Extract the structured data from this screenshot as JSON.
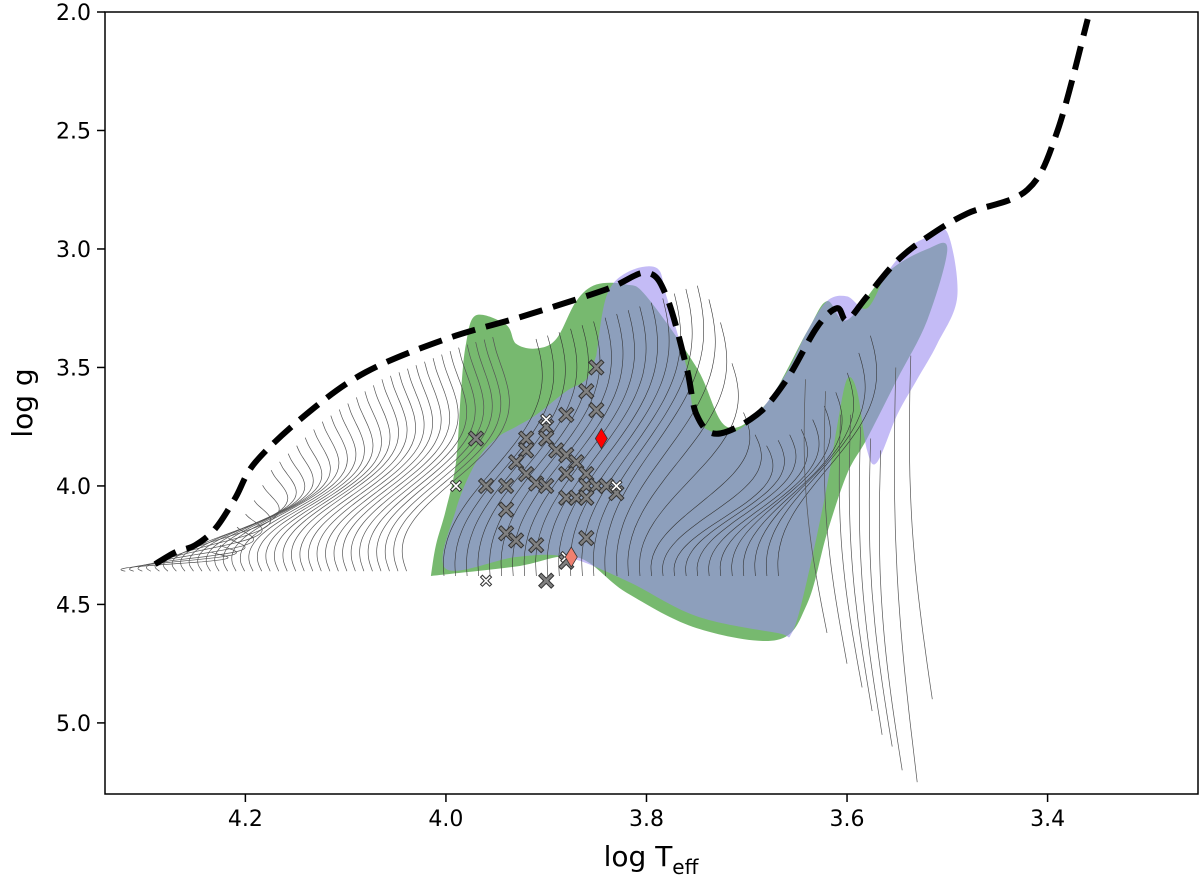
{
  "chart_data": {
    "type": "scatter",
    "title": "",
    "xlabel": "log T",
    "xlabel_sub": "eff",
    "ylabel": "log g",
    "xlim": [
      4.34,
      3.25
    ],
    "ylim": [
      5.3,
      2.0
    ],
    "x_ticks": [
      4.2,
      4.0,
      3.8,
      3.6,
      3.4
    ],
    "x_tick_labels": [
      "4.2",
      "4.0",
      "3.8",
      "3.6",
      "3.4"
    ],
    "y_ticks": [
      2.0,
      2.5,
      3.0,
      3.5,
      4.0,
      4.5,
      5.0
    ],
    "y_tick_labels": [
      "2.0",
      "2.5",
      "3.0",
      "3.5",
      "4.0",
      "4.5",
      "5.0"
    ],
    "grid": false,
    "colors": {
      "green_region": "#5fad56",
      "purple_region": "#9d8df0",
      "overlap_region": "#6c7fa6",
      "envelope": "#000000",
      "stars_gray": "#808080",
      "stars_white": "#ffffff",
      "diamond_red": "#ff0000",
      "diamond_salmon": "#f08070"
    },
    "envelope": [
      [
        4.29,
        4.33
      ],
      [
        4.27,
        4.28
      ],
      [
        4.25,
        4.25
      ],
      [
        4.23,
        4.18
      ],
      [
        4.21,
        4.05
      ],
      [
        4.19,
        3.9
      ],
      [
        4.14,
        3.7
      ],
      [
        4.08,
        3.52
      ],
      [
        4.0,
        3.38
      ],
      [
        3.92,
        3.28
      ],
      [
        3.84,
        3.17
      ],
      [
        3.8,
        3.1
      ],
      [
        3.78,
        3.2
      ],
      [
        3.76,
        3.5
      ],
      [
        3.75,
        3.7
      ],
      [
        3.73,
        3.78
      ],
      [
        3.69,
        3.7
      ],
      [
        3.66,
        3.55
      ],
      [
        3.63,
        3.33
      ],
      [
        3.61,
        3.25
      ],
      [
        3.6,
        3.3
      ],
      [
        3.58,
        3.2
      ],
      [
        3.55,
        3.05
      ],
      [
        3.52,
        2.95
      ],
      [
        3.48,
        2.85
      ],
      [
        3.42,
        2.75
      ],
      [
        3.39,
        2.5
      ],
      [
        3.36,
        2.03
      ]
    ],
    "green_region": [
      [
        4.015,
        4.38
      ],
      [
        4.01,
        4.25
      ],
      [
        4.0,
        4.1
      ],
      [
        3.99,
        3.9
      ],
      [
        3.985,
        3.6
      ],
      [
        3.98,
        3.4
      ],
      [
        3.97,
        3.28
      ],
      [
        3.94,
        3.32
      ],
      [
        3.93,
        3.4
      ],
      [
        3.91,
        3.42
      ],
      [
        3.89,
        3.38
      ],
      [
        3.87,
        3.22
      ],
      [
        3.85,
        3.15
      ],
      [
        3.82,
        3.15
      ],
      [
        3.8,
        3.2
      ],
      [
        3.75,
        3.5
      ],
      [
        3.72,
        3.75
      ],
      [
        3.68,
        3.65
      ],
      [
        3.64,
        3.35
      ],
      [
        3.62,
        3.22
      ],
      [
        3.6,
        3.3
      ],
      [
        3.56,
        3.1
      ],
      [
        3.52,
        3.0
      ],
      [
        3.5,
        3.0
      ],
      [
        3.52,
        3.3
      ],
      [
        3.55,
        3.55
      ],
      [
        3.58,
        3.8
      ],
      [
        3.6,
        3.95
      ],
      [
        3.62,
        4.2
      ],
      [
        3.64,
        4.5
      ],
      [
        3.67,
        4.65
      ],
      [
        3.75,
        4.6
      ],
      [
        3.82,
        4.45
      ],
      [
        3.87,
        4.3
      ],
      [
        3.93,
        4.34
      ],
      [
        4.015,
        4.38
      ]
    ],
    "purple_region": [
      [
        3.85,
        3.45
      ],
      [
        3.84,
        3.2
      ],
      [
        3.82,
        3.1
      ],
      [
        3.79,
        3.08
      ],
      [
        3.78,
        3.2
      ],
      [
        3.76,
        3.5
      ],
      [
        3.75,
        3.72
      ],
      [
        3.72,
        3.78
      ],
      [
        3.69,
        3.7
      ],
      [
        3.66,
        3.52
      ],
      [
        3.64,
        3.35
      ],
      [
        3.62,
        3.22
      ],
      [
        3.6,
        3.2
      ],
      [
        3.58,
        3.25
      ],
      [
        3.56,
        3.1
      ],
      [
        3.54,
        3.0
      ],
      [
        3.52,
        2.95
      ],
      [
        3.5,
        2.93
      ],
      [
        3.49,
        3.2
      ],
      [
        3.51,
        3.4
      ],
      [
        3.53,
        3.55
      ],
      [
        3.55,
        3.7
      ],
      [
        3.57,
        3.9
      ],
      [
        3.58,
        3.85
      ],
      [
        3.59,
        3.6
      ],
      [
        3.6,
        3.55
      ],
      [
        3.61,
        3.75
      ],
      [
        3.62,
        4.0
      ],
      [
        3.64,
        4.4
      ],
      [
        3.655,
        4.62
      ],
      [
        3.67,
        4.62
      ],
      [
        3.75,
        4.55
      ],
      [
        3.82,
        4.4
      ],
      [
        3.88,
        4.3
      ],
      [
        3.93,
        4.3
      ],
      [
        4.0,
        4.35
      ],
      [
        3.99,
        4.1
      ],
      [
        3.97,
        3.9
      ],
      [
        3.95,
        3.8
      ],
      [
        3.93,
        3.75
      ],
      [
        3.91,
        3.7
      ],
      [
        3.88,
        3.6
      ],
      [
        3.86,
        3.55
      ],
      [
        3.85,
        3.45
      ]
    ],
    "series": [
      {
        "name": "gray-crosses",
        "marker": "x",
        "points": [
          [
            3.85,
            3.5
          ],
          [
            3.86,
            3.6
          ],
          [
            3.85,
            3.68
          ],
          [
            3.88,
            3.7
          ],
          [
            3.9,
            3.75
          ],
          [
            3.9,
            3.8
          ],
          [
            3.92,
            3.8
          ],
          [
            3.97,
            3.8
          ],
          [
            3.89,
            3.85
          ],
          [
            3.92,
            3.85
          ],
          [
            3.88,
            3.87
          ],
          [
            3.93,
            3.9
          ],
          [
            3.87,
            3.9
          ],
          [
            3.92,
            3.95
          ],
          [
            3.88,
            3.95
          ],
          [
            3.86,
            3.95
          ],
          [
            3.96,
            4.0
          ],
          [
            3.94,
            4.0
          ],
          [
            3.91,
            3.99
          ],
          [
            3.9,
            4.0
          ],
          [
            3.86,
            4.0
          ],
          [
            3.85,
            4.0
          ],
          [
            3.84,
            4.0
          ],
          [
            3.83,
            4.03
          ],
          [
            3.88,
            4.05
          ],
          [
            3.87,
            4.05
          ],
          [
            3.86,
            4.05
          ],
          [
            3.94,
            4.1
          ],
          [
            3.94,
            4.2
          ],
          [
            3.93,
            4.23
          ],
          [
            3.91,
            4.25
          ],
          [
            3.86,
            4.22
          ],
          [
            3.88,
            4.32
          ],
          [
            3.9,
            4.4
          ]
        ]
      },
      {
        "name": "white-crosses",
        "marker": "x-small",
        "points": [
          [
            3.99,
            4.0
          ],
          [
            3.83,
            4.0
          ],
          [
            3.9,
            3.72
          ],
          [
            3.96,
            4.4
          ],
          [
            3.88,
            4.3
          ]
        ]
      },
      {
        "name": "red-diamond",
        "marker": "diamond",
        "points": [
          [
            3.845,
            3.8
          ]
        ]
      },
      {
        "name": "salmon-diamond",
        "marker": "diamond",
        "points": [
          [
            3.875,
            4.3
          ]
        ]
      }
    ]
  }
}
